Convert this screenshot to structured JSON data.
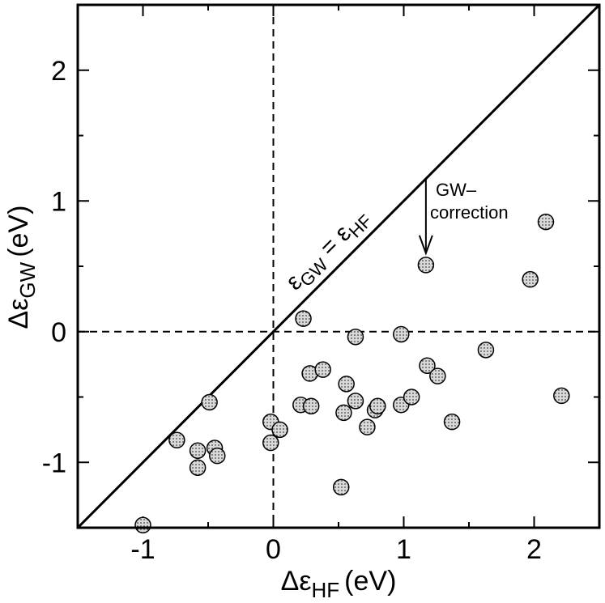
{
  "chart_data": {
    "type": "scatter",
    "title": "",
    "xlabel": {
      "symbol": "Δε",
      "subscript": "HF",
      "unit": "(eV)"
    },
    "ylabel": {
      "symbol": "Δε",
      "subscript": "GW",
      "unit": "(eV)"
    },
    "xlim": [
      -1.5,
      2.5
    ],
    "ylim": [
      -1.5,
      2.5
    ],
    "xticks": [
      -1,
      0,
      1,
      2
    ],
    "yticks": [
      -1,
      0,
      1,
      2
    ],
    "xtick_labels": [
      "-1",
      "0",
      "1",
      "2"
    ],
    "ytick_labels": [
      "-1",
      "0",
      "1",
      "2"
    ],
    "grid": false,
    "reference_lines": {
      "diagonal": {
        "label_main": "ε",
        "label_sub1": "GW",
        "label_eq": " = ε",
        "label_sub2": "HF"
      },
      "x_zero_dashed": true,
      "y_zero_dashed": true
    },
    "annotation": {
      "line1": "GW–",
      "line2": "correction",
      "arrow_from": [
        1.17,
        1.17
      ],
      "arrow_to": [
        1.17,
        0.6
      ]
    },
    "points": [
      {
        "x": -1.0,
        "y": -1.48
      },
      {
        "x": -0.74,
        "y": -0.83
      },
      {
        "x": -0.58,
        "y": -0.91
      },
      {
        "x": -0.58,
        "y": -1.04
      },
      {
        "x": -0.49,
        "y": -0.54
      },
      {
        "x": -0.45,
        "y": -0.89
      },
      {
        "x": -0.43,
        "y": -0.95
      },
      {
        "x": -0.02,
        "y": -0.69
      },
      {
        "x": -0.02,
        "y": -0.85
      },
      {
        "x": 0.05,
        "y": -0.75
      },
      {
        "x": 0.21,
        "y": -0.56
      },
      {
        "x": 0.23,
        "y": 0.1
      },
      {
        "x": 0.28,
        "y": -0.32
      },
      {
        "x": 0.29,
        "y": -0.57
      },
      {
        "x": 0.38,
        "y": -0.29
      },
      {
        "x": 0.52,
        "y": -1.19
      },
      {
        "x": 0.54,
        "y": -0.62
      },
      {
        "x": 0.56,
        "y": -0.4
      },
      {
        "x": 0.63,
        "y": -0.53
      },
      {
        "x": 0.63,
        "y": -0.04
      },
      {
        "x": 0.72,
        "y": -0.73
      },
      {
        "x": 0.78,
        "y": -0.6
      },
      {
        "x": 0.8,
        "y": -0.57
      },
      {
        "x": 0.98,
        "y": -0.02
      },
      {
        "x": 0.98,
        "y": -0.56
      },
      {
        "x": 1.06,
        "y": -0.5
      },
      {
        "x": 1.17,
        "y": 0.51
      },
      {
        "x": 1.18,
        "y": -0.26
      },
      {
        "x": 1.26,
        "y": -0.34
      },
      {
        "x": 1.37,
        "y": -0.69
      },
      {
        "x": 1.63,
        "y": -0.14
      },
      {
        "x": 1.97,
        "y": 0.4
      },
      {
        "x": 2.09,
        "y": 0.84
      },
      {
        "x": 2.21,
        "y": -0.49
      }
    ]
  }
}
